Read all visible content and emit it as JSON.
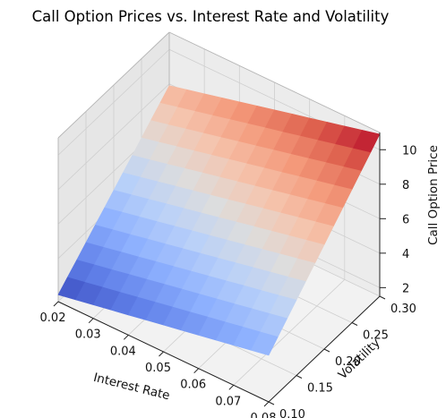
{
  "chart_data": {
    "type": "surface",
    "title": "Call Option Prices vs. Interest Rate and Volatility",
    "xlabel": "Interest Rate",
    "ylabel": "Volatility",
    "zlabel": "Call Option Price",
    "colormap": "coolwarm",
    "x_ticks": [
      "0.02",
      "0.03",
      "0.04",
      "0.05",
      "0.06",
      "0.07",
      "0.08"
    ],
    "y_ticks": [
      "0.10",
      "0.15",
      "0.20",
      "0.25",
      "0.30"
    ],
    "z_ticks": [
      "2",
      "4",
      "6",
      "8",
      "10"
    ],
    "xlim": [
      0.02,
      0.08
    ],
    "ylim": [
      0.1,
      0.3
    ],
    "zlim": [
      1.5,
      11.0
    ],
    "grid": true,
    "corner_values": [
      {
        "interest_rate": 0.02,
        "volatility": 0.1,
        "price": 1.9
      },
      {
        "interest_rate": 0.08,
        "volatility": 0.1,
        "price": 4.2
      },
      {
        "interest_rate": 0.02,
        "volatility": 0.3,
        "price": 7.9
      },
      {
        "interest_rate": 0.08,
        "volatility": 0.3,
        "price": 10.9
      }
    ]
  }
}
